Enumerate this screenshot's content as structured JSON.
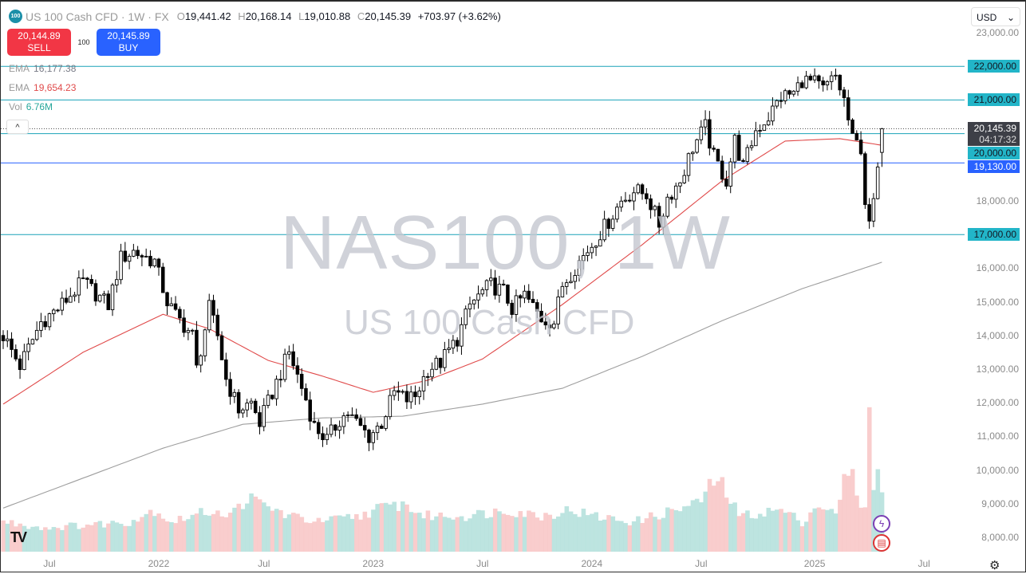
{
  "header": {
    "logo": "100",
    "title": "US 100 Cash CFD · 1W · FX",
    "open_k": "O",
    "open": "19,441.42",
    "high_k": "H",
    "high": "20,168.14",
    "low_k": "L",
    "low": "19,010.88",
    "close_k": "C",
    "close": "20,145.39",
    "change": "+703.97 (+3.62%)"
  },
  "trade": {
    "sell_price": "20,144.89",
    "sell_label": "SELL",
    "qty": "100",
    "buy_price": "20,145.89",
    "buy_label": "BUY"
  },
  "indicators": [
    {
      "name": "EMA",
      "value": "16,177.38",
      "color": "#787b86"
    },
    {
      "name": "EMA",
      "value": "19,654.23",
      "color": "#e04a4a"
    },
    {
      "name": "Vol",
      "value": "6.76M",
      "color": "#26a69a"
    }
  ],
  "collapse_icon": "^",
  "currency": {
    "value": "USD",
    "icon": "⌄"
  },
  "watermark": {
    "symbol": "NAS100, 1W",
    "name": "US 100 Cash CFD"
  },
  "price_tags": {
    "current": "20,145.39",
    "countdown": "04:17:32"
  },
  "colors": {
    "level": "#1aa3b8",
    "level_tag": "#22b5c8",
    "support_tag": "#2962ff",
    "ema_fast": "#e04a4a",
    "ema_slow": "#9e9e9e",
    "vol_up": "#b2dfdb",
    "vol_down": "#f8c4c4"
  },
  "chart_data": {
    "type": "candlestick",
    "title": "US 100 Cash CFD · 1W · FX",
    "ylim": [
      8000,
      23000
    ],
    "y_ticks": [
      "23,000.00",
      "18,000.00",
      "16,000.00",
      "15,000.00",
      "14,000.00",
      "13,000.00",
      "12,000.00",
      "11,000.00",
      "10,000.00",
      "9,000.00",
      "8,000.00"
    ],
    "y_tick_values": [
      23000,
      18000,
      16000,
      15000,
      14000,
      13000,
      12000,
      11000,
      10000,
      9000,
      8000
    ],
    "x_ticks": [
      "Jul",
      "2022",
      "Jul",
      "2023",
      "Jul",
      "2024",
      "Jul",
      "2025",
      "Jul"
    ],
    "x_tick_weeks": [
      11,
      37,
      62,
      88,
      114,
      140,
      166,
      193,
      219
    ],
    "levels": [
      {
        "value": 22000,
        "label": "22,000.00"
      },
      {
        "value": 21000,
        "label": "21,000.00"
      },
      {
        "value": 20000,
        "label": "20,000.00"
      },
      {
        "value": 19130,
        "label": "19,130.00"
      },
      {
        "value": 17000,
        "label": "17,000.00"
      }
    ],
    "last_candle": {
      "open": 19441.42,
      "high": 20168.14,
      "low": 19010.88,
      "close": 20145.39
    },
    "close_path": [
      [
        0,
        14000
      ],
      [
        4,
        13100
      ],
      [
        9,
        14400
      ],
      [
        13,
        14800
      ],
      [
        19,
        15600
      ],
      [
        25,
        14900
      ],
      [
        28,
        16300
      ],
      [
        31,
        16500
      ],
      [
        36,
        16200
      ],
      [
        39,
        15000
      ],
      [
        41,
        14600
      ],
      [
        45,
        14000
      ],
      [
        46,
        13000
      ],
      [
        49,
        14800
      ],
      [
        51,
        14000
      ],
      [
        53,
        12700
      ],
      [
        56,
        11800
      ],
      [
        59,
        12000
      ],
      [
        61,
        11400
      ],
      [
        64,
        12300
      ],
      [
        65,
        12600
      ],
      [
        68,
        13500
      ],
      [
        70,
        12800
      ],
      [
        72,
        12100
      ],
      [
        74,
        11300
      ],
      [
        77,
        10900
      ],
      [
        80,
        11500
      ],
      [
        82,
        11700
      ],
      [
        84,
        11400
      ],
      [
        87,
        11000
      ],
      [
        90,
        11400
      ],
      [
        93,
        12300
      ],
      [
        96,
        12100
      ],
      [
        98,
        12200
      ],
      [
        101,
        13000
      ],
      [
        104,
        13200
      ],
      [
        108,
        13900
      ],
      [
        111,
        14900
      ],
      [
        114,
        15300
      ],
      [
        116,
        15500
      ],
      [
        119,
        15300
      ],
      [
        121,
        14800
      ],
      [
        124,
        15200
      ],
      [
        128,
        14500
      ],
      [
        131,
        14400
      ],
      [
        133,
        15500
      ],
      [
        137,
        16200
      ],
      [
        140,
        16700
      ],
      [
        144,
        17400
      ],
      [
        147,
        18000
      ],
      [
        150,
        18300
      ],
      [
        153,
        18200
      ],
      [
        156,
        17300
      ],
      [
        158,
        18100
      ],
      [
        161,
        18600
      ],
      [
        164,
        19600
      ],
      [
        167,
        20200
      ],
      [
        169,
        19300
      ],
      [
        172,
        18600
      ],
      [
        174,
        19800
      ],
      [
        176,
        19000
      ],
      [
        179,
        20100
      ],
      [
        182,
        20500
      ],
      [
        185,
        21100
      ],
      [
        188,
        21200
      ],
      [
        190,
        21600
      ],
      [
        193,
        21500
      ],
      [
        195,
        21300
      ],
      [
        198,
        21700
      ],
      [
        200,
        21000
      ],
      [
        202,
        19800
      ],
      [
        204,
        19600
      ],
      [
        205,
        18000
      ],
      [
        206,
        17200
      ],
      [
        208,
        18800
      ],
      [
        209,
        19441.42
      ]
    ],
    "ema_fast": [
      [
        0,
        11960
      ],
      [
        19,
        13500
      ],
      [
        38,
        14630
      ],
      [
        49,
        14200
      ],
      [
        63,
        13260
      ],
      [
        76,
        12790
      ],
      [
        88,
        12310
      ],
      [
        101,
        12670
      ],
      [
        114,
        13300
      ],
      [
        133,
        14920
      ],
      [
        152,
        16700
      ],
      [
        171,
        18600
      ],
      [
        186,
        19780
      ],
      [
        199,
        19850
      ],
      [
        209,
        19654
      ]
    ],
    "ema_slow": [
      [
        0,
        8870
      ],
      [
        38,
        10650
      ],
      [
        57,
        11360
      ],
      [
        76,
        11550
      ],
      [
        95,
        11600
      ],
      [
        114,
        11960
      ],
      [
        133,
        12430
      ],
      [
        152,
        13380
      ],
      [
        171,
        14440
      ],
      [
        190,
        15390
      ],
      [
        209,
        16177
      ]
    ],
    "volume_path_m": [
      [
        0,
        2.5
      ],
      [
        10,
        2
      ],
      [
        30,
        2.5
      ],
      [
        36,
        3.5
      ],
      [
        40,
        2.5
      ],
      [
        50,
        3.5
      ],
      [
        54,
        3
      ],
      [
        58,
        4.5
      ],
      [
        68,
        3
      ],
      [
        75,
        2.5
      ],
      [
        85,
        3
      ],
      [
        88,
        3.5
      ],
      [
        95,
        4
      ],
      [
        100,
        3
      ],
      [
        110,
        3
      ],
      [
        120,
        3.5
      ],
      [
        128,
        3
      ],
      [
        135,
        3.5
      ],
      [
        140,
        3
      ],
      [
        150,
        2.5
      ],
      [
        160,
        3.5
      ],
      [
        165,
        4
      ],
      [
        170,
        6.2
      ],
      [
        175,
        3
      ],
      [
        185,
        3.5
      ],
      [
        190,
        2.5
      ],
      [
        194,
        4
      ],
      [
        198,
        3
      ],
      [
        201,
        7.2
      ],
      [
        203,
        5
      ],
      [
        205,
        3.5
      ],
      [
        206,
        11
      ],
      [
        207,
        6
      ],
      [
        208,
        6.8
      ],
      [
        209,
        4.5
      ]
    ]
  }
}
